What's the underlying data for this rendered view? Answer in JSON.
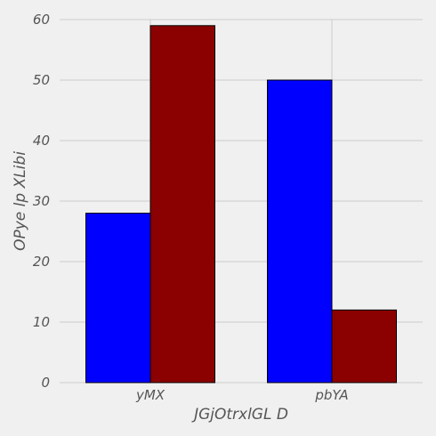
{
  "chart_data": {
    "type": "bar",
    "categories": [
      "yMX",
      "pbYA"
    ],
    "series": [
      {
        "values": [
          28,
          50
        ],
        "color": "#0000ff"
      },
      {
        "values": [
          59,
          12
        ],
        "color": "#8b0000"
      }
    ],
    "xlabel": "JGjOtrxlGL D",
    "ylabel": "OPye lp XLibi",
    "ylim": [
      0,
      60
    ],
    "yticks": [
      0,
      10,
      20,
      30,
      40,
      50,
      60
    ],
    "grid": true,
    "legend": "none",
    "background": "#f0f0f0",
    "grid_color": "#cbcbcb"
  }
}
